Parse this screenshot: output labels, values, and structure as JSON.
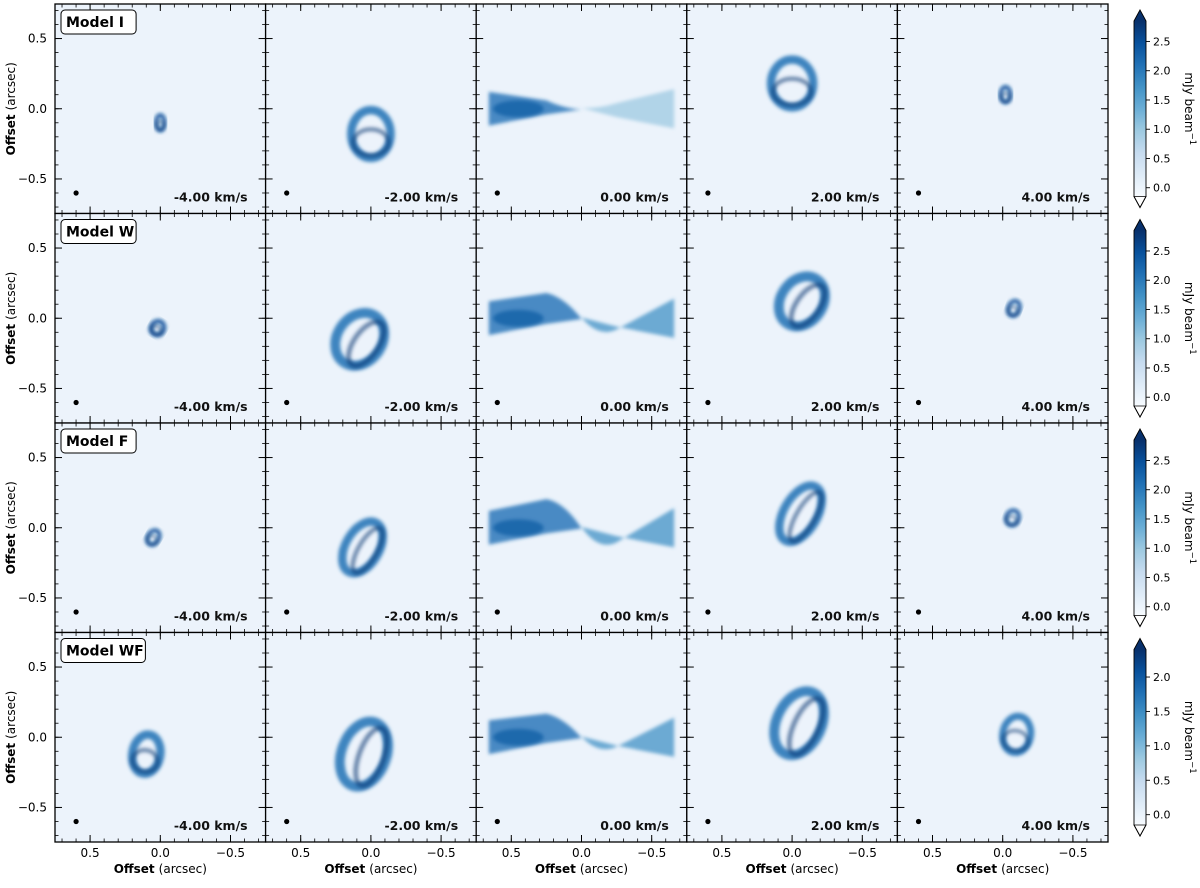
{
  "figure": {
    "ylabel_bold": "Offset",
    "ylabel_unit": "(arcsec)",
    "xlabel_bold": "Offset",
    "xlabel_unit": "(arcsec)",
    "colorbar_label": "mJy beam",
    "colorbar_label_sup": "−1",
    "cmap": [
      "#f7fbff",
      "#deebf7",
      "#c6dbef",
      "#9ecae1",
      "#6baed6",
      "#4292c6",
      "#2171b5",
      "#08519c",
      "#08306b"
    ]
  },
  "chart_data": {
    "type": "heatmap",
    "description_units": "channel maps; offsets in arcsec, intensity in mJy beam^-1",
    "x_ticks": [
      "0.5",
      "0.0",
      "−0.5"
    ],
    "y_ticks": [
      "0.5",
      "0.0",
      "−0.5"
    ],
    "xlim": [
      0.75,
      -0.75
    ],
    "ylim": [
      -0.75,
      0.75
    ],
    "velocities": [
      "-4.00 km/s",
      "-2.00 km/s",
      "0.00 km/s",
      "2.00 km/s",
      "4.00 km/s"
    ],
    "rows": [
      {
        "model": "Model I",
        "cbar_ticks": [
          "0.0",
          "0.5",
          "1.0",
          "1.5",
          "2.0",
          "2.5"
        ],
        "cbar_max": 2.85,
        "shape": "I"
      },
      {
        "model": "Model W",
        "cbar_ticks": [
          "0.0",
          "0.5",
          "1.0",
          "1.5",
          "2.0",
          "2.5"
        ],
        "cbar_max": 2.85,
        "shape": "W"
      },
      {
        "model": "Model F",
        "cbar_ticks": [
          "0.0",
          "0.5",
          "1.0",
          "1.5",
          "2.0",
          "2.5"
        ],
        "cbar_max": 2.85,
        "shape": "F"
      },
      {
        "model": "Model WF",
        "cbar_ticks": [
          "0.0",
          "0.5",
          "1.0",
          "1.5",
          "2.0"
        ],
        "cbar_max": 2.4,
        "shape": "WF"
      }
    ]
  }
}
